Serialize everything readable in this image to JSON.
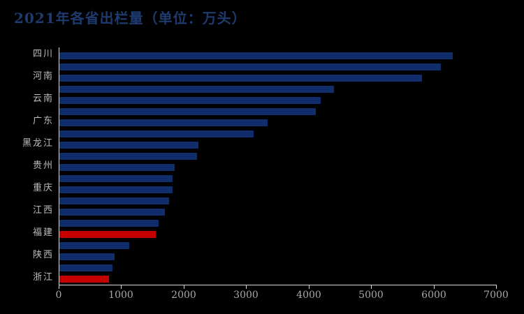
{
  "title": "2021年各省出栏量（单位：万头）",
  "colors": {
    "background": "#000000",
    "title": "#1E3A6E",
    "bar": "#0E2D6A",
    "highlight_bar": "#C40000",
    "axis_line": "#D9D9D9",
    "tick_label": "#A8A8A8",
    "category_label": "#BDBDBD"
  },
  "chart_data": {
    "type": "bar",
    "orientation": "horizontal",
    "title": "2021年各省出栏量（单位：万头）",
    "unit": "万头",
    "xlim": [
      0,
      7000
    ],
    "x_ticks": [
      0,
      1000,
      2000,
      3000,
      4000,
      5000,
      6000,
      7000
    ],
    "grid": false,
    "legend": false,
    "bars": [
      {
        "label": "四川",
        "value": 6300,
        "highlight": false
      },
      {
        "label": "",
        "value": 6100,
        "highlight": false
      },
      {
        "label": "河南",
        "value": 5800,
        "highlight": false
      },
      {
        "label": "",
        "value": 4390,
        "highlight": false
      },
      {
        "label": "云南",
        "value": 4180,
        "highlight": false
      },
      {
        "label": "",
        "value": 4100,
        "highlight": false
      },
      {
        "label": "广东",
        "value": 3330,
        "highlight": false
      },
      {
        "label": "",
        "value": 3110,
        "highlight": false
      },
      {
        "label": "黑龙江",
        "value": 2220,
        "highlight": false
      },
      {
        "label": "",
        "value": 2200,
        "highlight": false
      },
      {
        "label": "贵州",
        "value": 1840,
        "highlight": false
      },
      {
        "label": "",
        "value": 1810,
        "highlight": false
      },
      {
        "label": "重庆",
        "value": 1810,
        "highlight": false
      },
      {
        "label": "",
        "value": 1760,
        "highlight": false
      },
      {
        "label": "江西",
        "value": 1690,
        "highlight": false
      },
      {
        "label": "",
        "value": 1590,
        "highlight": false
      },
      {
        "label": "福建",
        "value": 1540,
        "highlight": true
      },
      {
        "label": "",
        "value": 1120,
        "highlight": false
      },
      {
        "label": "陕西",
        "value": 880,
        "highlight": false
      },
      {
        "label": "",
        "value": 850,
        "highlight": false
      },
      {
        "label": "浙江",
        "value": 790,
        "highlight": true
      }
    ]
  }
}
